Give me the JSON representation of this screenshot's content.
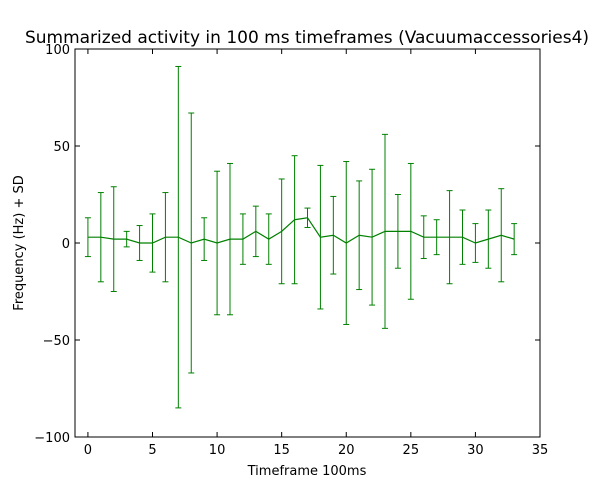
{
  "chart_data": {
    "type": "line",
    "title": "Summarized activity in 100 ms timeframes (Vacuumaccessories4)",
    "xlabel": "Timeframe 100ms",
    "ylabel": "Frequency (Hz) + SD",
    "xlim": [
      -1,
      35
    ],
    "ylim": [
      -100,
      100
    ],
    "xticks": [
      0,
      5,
      10,
      15,
      20,
      25,
      30,
      35
    ],
    "yticks": [
      -100,
      -50,
      0,
      50,
      100
    ],
    "xtick_labels": [
      "0",
      "5",
      "10",
      "15",
      "20",
      "25",
      "30",
      "35"
    ],
    "ytick_labels": [
      "−100",
      "−50",
      "0",
      "50",
      "100"
    ],
    "grid": false,
    "line_color": "#008000",
    "series": [
      {
        "x": [
          0,
          1,
          2,
          3,
          4,
          5,
          6,
          7,
          8,
          9,
          10,
          11,
          12,
          13,
          14,
          15,
          16,
          17,
          18,
          19,
          20,
          21,
          22,
          23,
          24,
          25,
          26,
          27,
          28,
          29,
          30,
          31,
          32,
          33
        ],
        "y": [
          3,
          3,
          2,
          2,
          0,
          0,
          3,
          3,
          0,
          2,
          0,
          2,
          2,
          6,
          2,
          6,
          12,
          13,
          3,
          4,
          0,
          4,
          3,
          6,
          6,
          6,
          3,
          3,
          3,
          3,
          0,
          2,
          4,
          2
        ],
        "sd": [
          10,
          23,
          27,
          4,
          9,
          15,
          23,
          88,
          67,
          11,
          37,
          39,
          13,
          13,
          13,
          27,
          33,
          5,
          37,
          20,
          42,
          28,
          35,
          50,
          19,
          35,
          11,
          9,
          24,
          14,
          10,
          15,
          24,
          8
        ]
      }
    ]
  }
}
